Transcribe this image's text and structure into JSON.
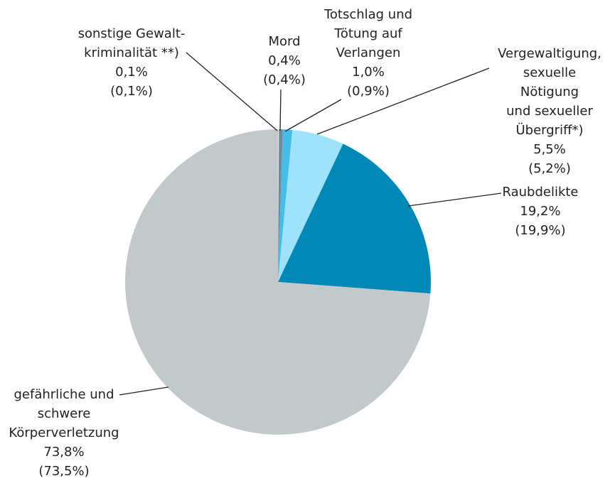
{
  "chart_data": {
    "type": "pie",
    "categories": [
      "sonstige Gewalt-\nkriminalität **)",
      "Mord",
      "Totschlag und\nTötung auf\nVerlangen",
      "Vergewaltigung,\nsexuelle Nötigung\nund sexueller\nÜbergriff*)",
      "Raubdelikte",
      "gefährliche und\nschwere\nKörperverletzung"
    ],
    "series": [
      {
        "values": [
          0.1,
          0.4,
          1.0,
          5.5,
          19.2,
          73.8
        ],
        "value_labels": [
          "0,1%",
          "0,4%",
          "1,0%",
          "5,5%",
          "19,2%",
          "73,8%"
        ]
      },
      {
        "values": [
          0.1,
          0.4,
          0.9,
          5.2,
          19.9,
          73.5
        ],
        "value_labels": [
          "(0,1%)",
          "(0,4%)",
          "(0,9%)",
          "(5,2%)",
          "(19,9%)",
          "(73,5%)"
        ]
      }
    ],
    "colors": [
      "#dfe6ea",
      "#6e8a99",
      "#45bdea",
      "#9ee3fb",
      "#0089b7",
      "#c3c8cb"
    ]
  }
}
